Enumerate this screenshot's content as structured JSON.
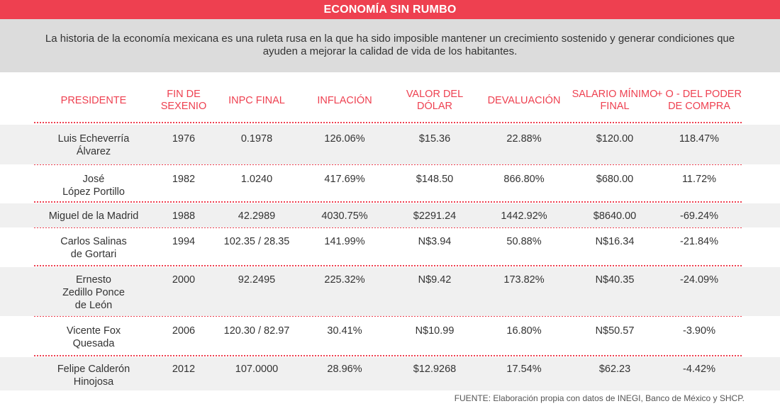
{
  "title": "ECONOMÍA SIN RUMBO",
  "intro": "La historia de la economía mexicana es una ruleta rusa en la que ha sido imposible mantener un crecimiento sostenido y generar condiciones que ayuden a mejorar la calidad de vida de los habitantes.",
  "columns": [
    "PRESIDENTE",
    "FIN DE SEXENIO",
    "INPC FINAL",
    "INFLACIÓN",
    "VALOR DEL DÓLAR",
    "DEVALUACIÓN",
    "SALARIO MÍNIMO FINAL",
    "+ O - DEL PODER DE COMPRA"
  ],
  "rows": [
    [
      "Luis Echeverría Álvarez",
      "1976",
      "0.1978",
      "126.06%",
      "$15.36",
      "22.88%",
      "$120.00",
      "118.47%"
    ],
    [
      "José López Portillo",
      "1982",
      "1.0240",
      "417.69%",
      "$148.50",
      "866.80%",
      "$680.00",
      "11.72%"
    ],
    [
      "Miguel de la Madrid",
      "1988",
      "42.2989",
      "4030.75%",
      "$2291.24",
      "1442.92%",
      "$8640.00",
      "-69.24%"
    ],
    [
      "Carlos Salinas de Gortari",
      "1994",
      "102.35 / 28.35",
      "141.99%",
      "N$3.94",
      "50.88%",
      "N$16.34",
      "-21.84%"
    ],
    [
      "Ernesto Zedillo Ponce de León",
      "2000",
      "92.2495",
      "225.32%",
      "N$9.42",
      "173.82%",
      "N$40.35",
      "-24.09%"
    ],
    [
      "Vicente Fox Quesada",
      "2006",
      "120.30 / 82.97",
      "30.41%",
      "N$10.99",
      "16.80%",
      "N$50.57",
      "-3.90%"
    ],
    [
      "Felipe Calderón Hinojosa",
      "2012",
      "107.0000",
      "28.96%",
      "$12.9268",
      "17.54%",
      "$62.23",
      "-4.42%"
    ]
  ],
  "source": "FUENTE: Elaboración propia con datos de INEGI, Banco de México y SHCP."
}
